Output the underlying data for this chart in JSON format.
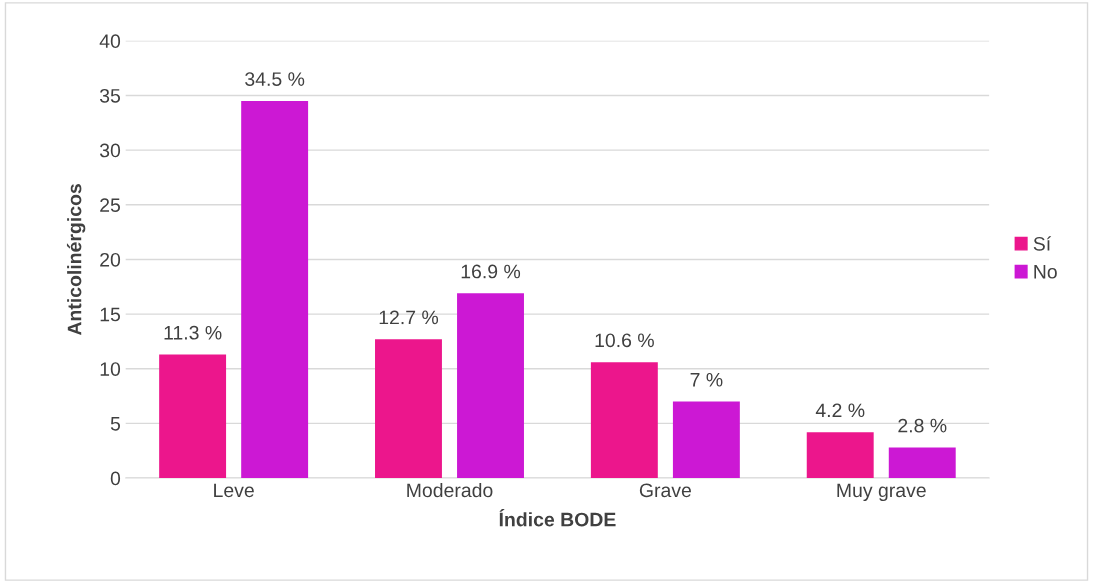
{
  "chart_data": {
    "type": "bar",
    "xlabel": "Índice BODE",
    "ylabel": "Anticolinérgicos",
    "categories": [
      "Leve",
      "Moderado",
      "Grave",
      "Muy grave"
    ],
    "series": [
      {
        "name": "Sí",
        "color": "#ec168c",
        "values": [
          11.3,
          12.7,
          10.6,
          4.2
        ],
        "value_labels": [
          "11.3 %",
          "12.7 %",
          "10.6 %",
          "4.2 %"
        ]
      },
      {
        "name": "No",
        "color": "#cc18d4",
        "values": [
          34.5,
          16.9,
          7,
          2.8
        ],
        "value_labels": [
          "34.5 %",
          "16.9 %",
          "7 %",
          "2.8 %"
        ]
      }
    ],
    "ylim": [
      0,
      40
    ],
    "yticks": [
      0,
      5,
      10,
      15,
      20,
      25,
      30,
      35,
      40
    ],
    "grid": "y",
    "legend": "right"
  }
}
